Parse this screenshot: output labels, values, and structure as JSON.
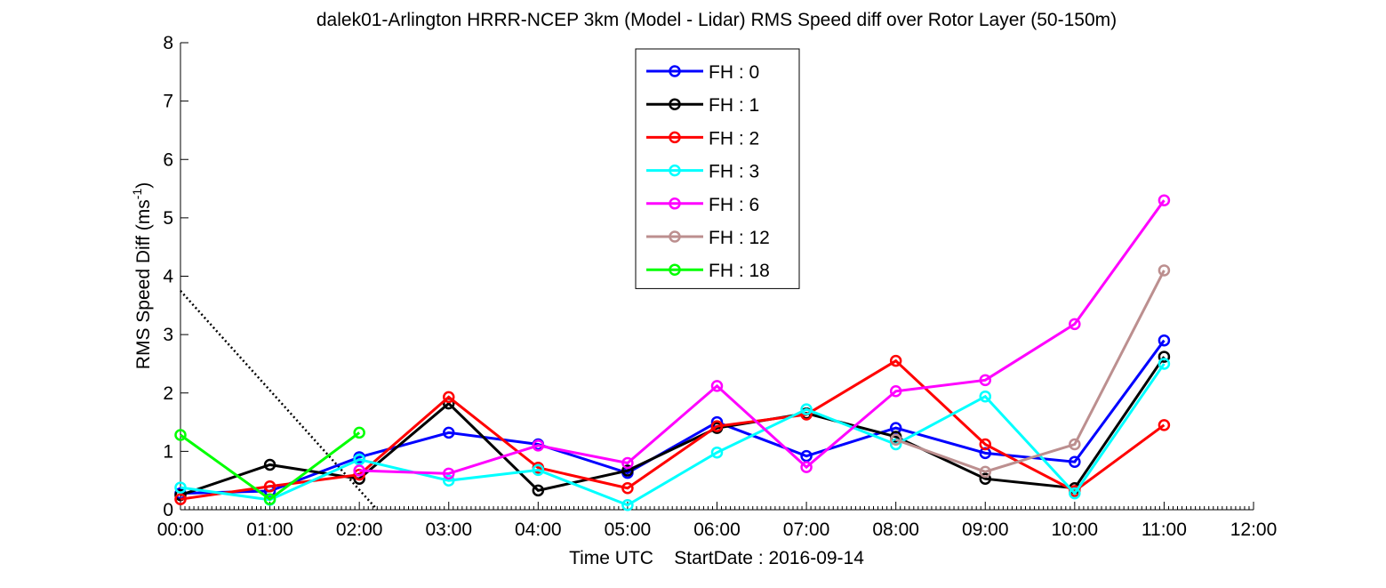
{
  "chart_data": {
    "type": "line",
    "title": "dalek01-Arlington HRRR-NCEP 3km (Model - Lidar) RMS Speed diff over Rotor Layer (50-150m)",
    "xlabel": "Time UTC    StartDate : 2016-09-14",
    "ylabel": "RMS Speed Diff (ms",
    "ylabel_sup": "-1",
    "ylabel_close": ")",
    "xlim": [
      0,
      12
    ],
    "ylim": [
      0,
      8
    ],
    "x_ticks": [
      0,
      1,
      2,
      3,
      4,
      5,
      6,
      7,
      8,
      9,
      10,
      11,
      12
    ],
    "x_tick_labels": [
      "00:00",
      "01:00",
      "02:00",
      "03:00",
      "04:00",
      "05:00",
      "06:00",
      "07:00",
      "08:00",
      "09:00",
      "10:00",
      "11:00",
      "12:00"
    ],
    "y_ticks": [
      0,
      1,
      2,
      3,
      4,
      5,
      6,
      7,
      8
    ],
    "y_tick_labels": [
      "0",
      "1",
      "2",
      "3",
      "4",
      "5",
      "6",
      "7",
      "8"
    ],
    "grid": false,
    "legend_position": "top-center",
    "marker": "circle",
    "series": [
      {
        "name": "FH : 0",
        "color": "#0000ff",
        "x": [
          0,
          1,
          2,
          3,
          4,
          5,
          6,
          7,
          8,
          9,
          10,
          11
        ],
        "y": [
          0.28,
          0.32,
          0.9,
          1.32,
          1.12,
          0.63,
          1.5,
          0.92,
          1.4,
          0.97,
          0.82,
          2.9
        ]
      },
      {
        "name": "FH : 1",
        "color": "#000000",
        "x": [
          0,
          1,
          2,
          3,
          4,
          5,
          6,
          7,
          8,
          9,
          10,
          11
        ],
        "y": [
          0.25,
          0.77,
          0.53,
          1.82,
          0.33,
          0.67,
          1.4,
          1.65,
          1.25,
          0.53,
          0.37,
          2.62
        ]
      },
      {
        "name": "FH : 2",
        "color": "#ff0000",
        "x": [
          0,
          1,
          2,
          3,
          4,
          5,
          6,
          7,
          8,
          9,
          10,
          11
        ],
        "y": [
          0.18,
          0.4,
          0.6,
          1.93,
          0.72,
          0.37,
          1.43,
          1.63,
          2.55,
          1.12,
          0.32,
          1.45
        ]
      },
      {
        "name": "FH : 3",
        "color": "#00ffff",
        "x": [
          0,
          1,
          2,
          3,
          4,
          5,
          6,
          7,
          8,
          9,
          10,
          11
        ],
        "y": [
          0.38,
          0.17,
          0.86,
          0.5,
          0.68,
          0.08,
          0.98,
          1.72,
          1.12,
          1.94,
          0.28,
          2.5
        ]
      },
      {
        "name": "FH : 6",
        "color": "#ff00ff",
        "x": [
          2,
          3,
          4,
          5,
          6,
          7,
          8,
          9,
          10,
          11
        ],
        "y": [
          0.67,
          0.62,
          1.1,
          0.8,
          2.12,
          0.73,
          2.03,
          2.22,
          3.18,
          5.3
        ]
      },
      {
        "name": "FH : 12",
        "color": "#bc8f8f",
        "x": [
          8,
          9,
          10,
          11
        ],
        "y": [
          1.2,
          0.65,
          1.12,
          4.1
        ]
      },
      {
        "name": "FH : 18",
        "color": "#00ff00",
        "x": [
          0,
          1,
          2
        ],
        "y": [
          1.28,
          0.18,
          1.32
        ]
      }
    ],
    "annotations": [
      {
        "style": "dotted",
        "color": "#000000",
        "x": [
          0,
          2.2
        ],
        "y": [
          3.75,
          0
        ]
      }
    ]
  }
}
